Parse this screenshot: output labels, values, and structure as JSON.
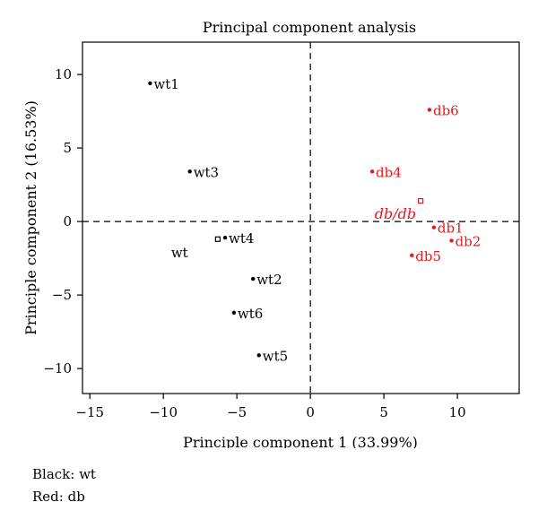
{
  "chart_data": {
    "type": "scatter",
    "title": "Principal component analysis",
    "xlabel": "Principle component 1 (33.99%)",
    "ylabel": "Principle component 2 (16.53%)",
    "xlim": [
      -15.5,
      14.2
    ],
    "ylim": [
      -11.7,
      12.2
    ],
    "xticks": [
      -15,
      -10,
      -5,
      0,
      5,
      10
    ],
    "xtick_labels": [
      "−15",
      "−10",
      "−5",
      "0",
      "5",
      "10"
    ],
    "yticks": [
      -10,
      -5,
      0,
      5,
      10
    ],
    "ytick_labels": [
      "−10",
      "−5",
      "0",
      "5",
      "10"
    ],
    "reference_lines": {
      "x": 0,
      "y": 0,
      "style": "dashed"
    },
    "grid": false,
    "series": [
      {
        "color": "#000000",
        "points": [
          {
            "label": "wt1",
            "x": -10.9,
            "y": 9.4
          },
          {
            "label": "wt3",
            "x": -8.2,
            "y": 3.4
          },
          {
            "label": "wt4",
            "x": -5.8,
            "y": -1.1
          },
          {
            "label": "wt2",
            "x": -3.9,
            "y": -3.9
          },
          {
            "label": "wt6",
            "x": -5.2,
            "y": -6.2
          },
          {
            "label": "wt5",
            "x": -3.5,
            "y": -9.1
          }
        ],
        "centroid": {
          "label": "wt",
          "x": -6.3,
          "y": -1.2
        }
      },
      {
        "color": "#e41a1c",
        "points": [
          {
            "label": "db6",
            "x": 8.1,
            "y": 7.6
          },
          {
            "label": "db4",
            "x": 4.2,
            "y": 3.4
          },
          {
            "label": "db1",
            "x": 8.4,
            "y": -0.4
          },
          {
            "label": "db2",
            "x": 9.6,
            "y": -1.3
          },
          {
            "label": "db5",
            "x": 6.9,
            "y": -2.3
          }
        ],
        "centroid": {
          "label": "db/db",
          "x": 7.5,
          "y": 1.4
        }
      }
    ]
  },
  "notes": {
    "line1": "Black: wt",
    "line2": "Red: db"
  }
}
